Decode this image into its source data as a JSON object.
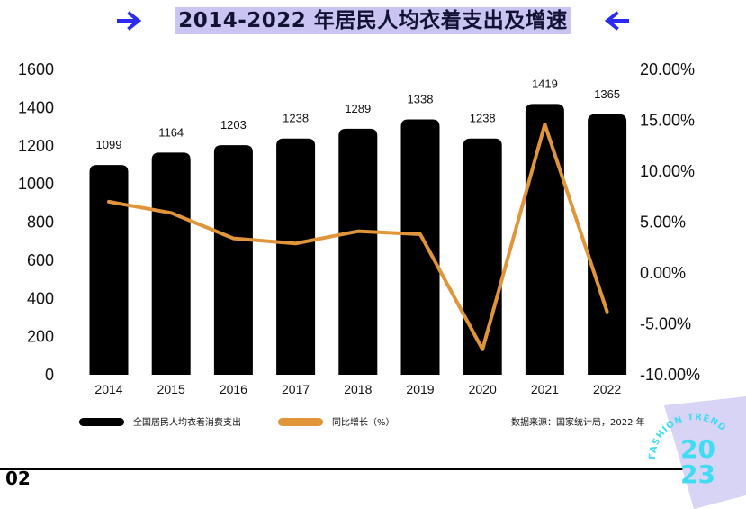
{
  "title": "2014-2022 年居民人均衣着支出及增速",
  "page_number": "02",
  "source": "数据来源：国家统计局，2022 年",
  "badge": {
    "ring_text": "FASHION TREND",
    "year_top": "20",
    "year_bottom": "23"
  },
  "colors": {
    "bar": "#000000",
    "line": "#e0953a",
    "title_bg": "#c9c4f2",
    "arrow": "#2b2bf0",
    "badge": "#3fdcf2"
  },
  "chart_data": {
    "type": "bar",
    "categories": [
      "2014",
      "2015",
      "2016",
      "2017",
      "2018",
      "2019",
      "2020",
      "2021",
      "2022"
    ],
    "series": [
      {
        "name": "全国居民人均衣着消费支出",
        "type": "bar",
        "axis": "left",
        "values": [
          1099,
          1164,
          1203,
          1238,
          1289,
          1338,
          1238,
          1419,
          1365
        ]
      },
      {
        "name": "同比增长（%）",
        "type": "line",
        "axis": "right",
        "values": [
          7.0,
          5.9,
          3.4,
          2.9,
          4.1,
          3.8,
          -7.5,
          14.6,
          -3.8
        ]
      }
    ],
    "y_left": {
      "ylim": [
        0,
        1600
      ],
      "ticks": [
        "0",
        "200",
        "400",
        "600",
        "800",
        "1000",
        "1200",
        "1400",
        "1600"
      ]
    },
    "y_right": {
      "ylim": [
        -10,
        20
      ],
      "ticks": [
        "-10.00%",
        "-5.00%",
        "0.00%",
        "5.00%",
        "10.00%",
        "15.00%",
        "20.00%"
      ]
    },
    "data_labels": [
      "1099",
      "1164",
      "1203",
      "1238",
      "1289",
      "1338",
      "1238",
      "1419",
      "1365"
    ],
    "legend": "bottom-left",
    "grid": false
  }
}
